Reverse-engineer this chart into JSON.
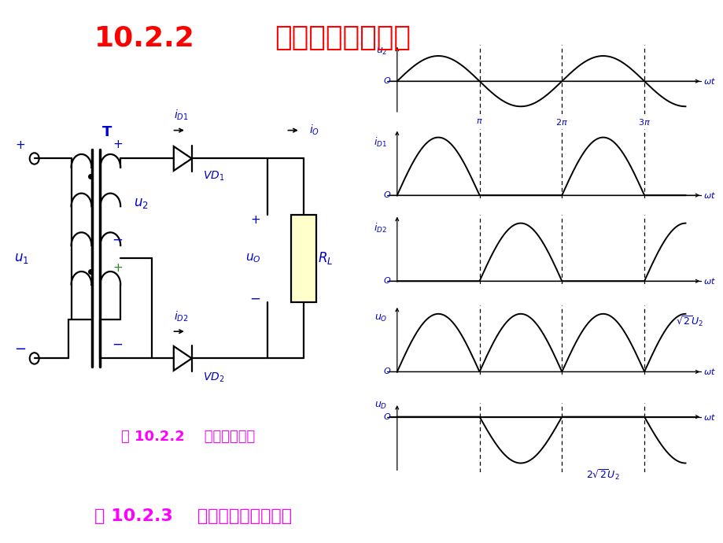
{
  "title_num": "10.2.2",
  "title_text": "单相全波整流电路",
  "title_color": "#FF0000",
  "title_fontsize": 26,
  "fig_caption1": "图 10.2.2    全波整流电路",
  "fig_caption2": "图 10.2.3    全波整流电路波形图",
  "caption_color": "#FF00FF",
  "caption_fontsize": 16,
  "bg_color": "#FFFFFF",
  "blue_color": "#0000CC",
  "black_color": "#000000",
  "green_color": "#228B22",
  "yellow_fill": "#FFFFCC"
}
